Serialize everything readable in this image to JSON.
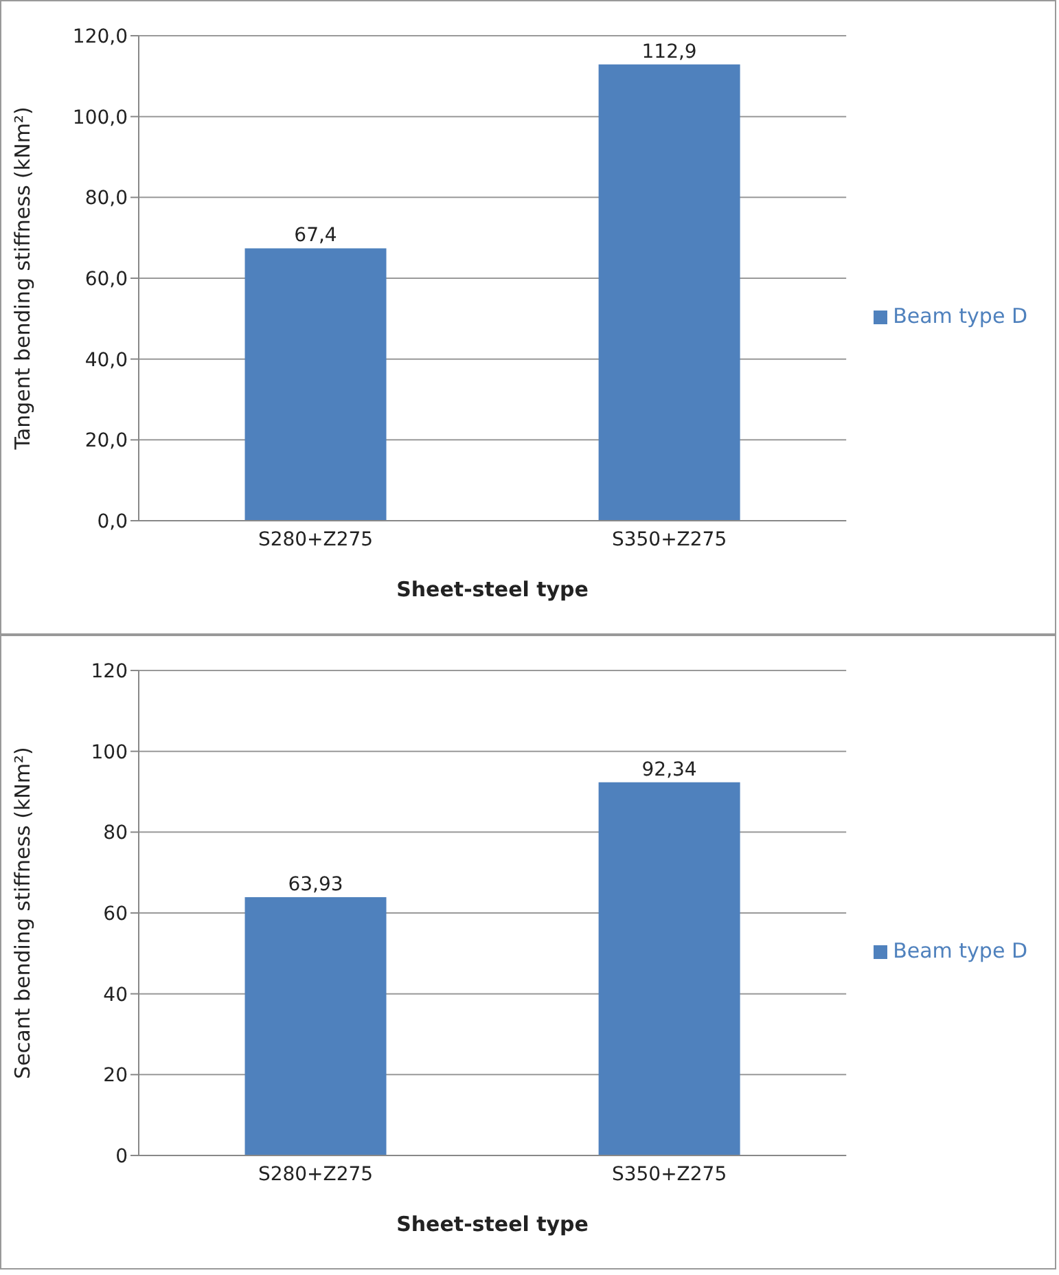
{
  "chart_data": [
    {
      "type": "bar",
      "ylabel": "Tangent bending stiffness (kNm²)",
      "xlabel": "Sheet-steel type",
      "categories": [
        "S280+Z275",
        "S350+Z275"
      ],
      "series": [
        {
          "name": "Beam type D",
          "color": "#4f81bd",
          "values": [
            67.4,
            112.9
          ],
          "value_labels": [
            "67,4",
            "112,9"
          ]
        }
      ],
      "ylim": [
        0,
        120
      ],
      "yticks": [
        {
          "value": 0,
          "label": "0,0"
        },
        {
          "value": 20,
          "label": "20,0"
        },
        {
          "value": 40,
          "label": "40,0"
        },
        {
          "value": 60,
          "label": "60,0"
        },
        {
          "value": 80,
          "label": "80,0"
        },
        {
          "value": 100,
          "label": "100,0"
        },
        {
          "value": 120,
          "label": "120,0"
        }
      ],
      "grid": "y",
      "legend": "right"
    },
    {
      "type": "bar",
      "ylabel": "Secant bending stiffness (kNm²)",
      "xlabel": "Sheet-steel type",
      "categories": [
        "S280+Z275",
        "S350+Z275"
      ],
      "series": [
        {
          "name": "Beam type D",
          "color": "#4f81bd",
          "values": [
            63.93,
            92.34
          ],
          "value_labels": [
            "63,93",
            "92,34"
          ]
        }
      ],
      "ylim": [
        0,
        120
      ],
      "yticks": [
        0,
        20,
        40,
        60,
        80,
        100,
        120
      ],
      "grid": "y",
      "legend": "right"
    }
  ]
}
